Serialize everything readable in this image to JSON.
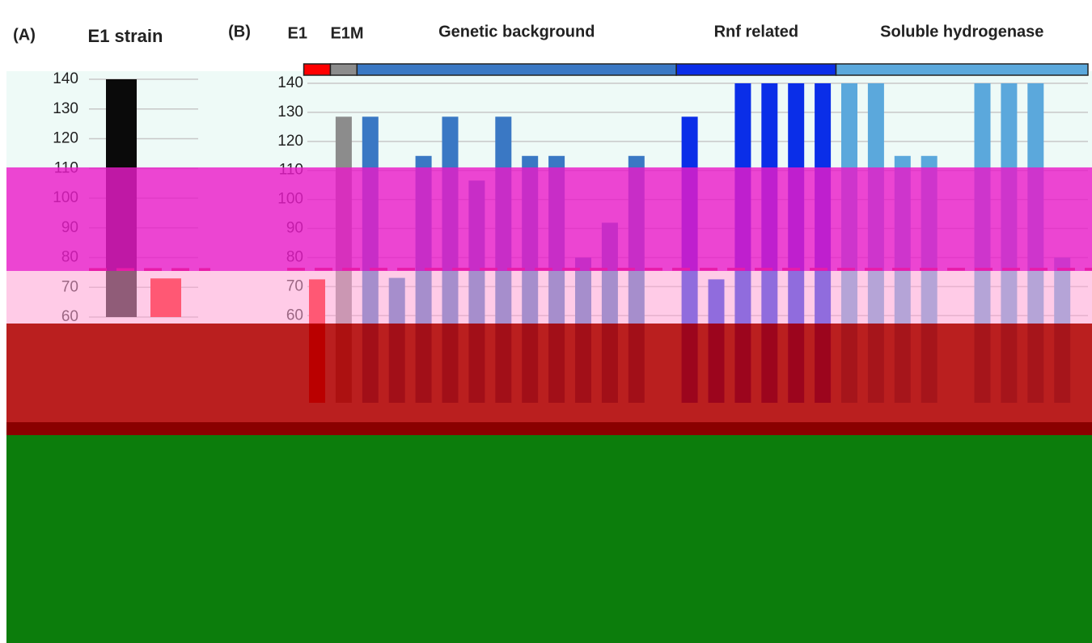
{
  "chart_data": [
    {
      "type": "bar",
      "panel": "(A)",
      "title": "E1 strain",
      "categories": [
        null,
        null
      ],
      "values": [
        140,
        73
      ],
      "colors": [
        "#0a0a0a",
        "#ff0000"
      ],
      "ylim": [
        60,
        140
      ],
      "yticks": [
        60,
        70,
        80,
        90,
        100,
        110,
        120,
        130,
        140
      ],
      "grid": true,
      "reference_line": 76,
      "reference_color": "#e0201c"
    },
    {
      "type": "bar",
      "panel": "(B)",
      "categories": [
        null,
        null,
        null,
        null,
        null,
        null,
        null,
        null,
        null,
        null,
        null,
        null,
        null,
        null,
        null,
        null,
        null,
        null,
        null,
        null,
        null,
        null,
        null,
        null,
        null,
        null,
        null,
        null,
        null
      ],
      "series": [
        {
          "name": "E1",
          "color": "#ff0000",
          "values": [
            72.5,
            null,
            null,
            null,
            null,
            null,
            null,
            null,
            null,
            null,
            null,
            null,
            null,
            null,
            null,
            null,
            null,
            null,
            null,
            null,
            null,
            null,
            null,
            null,
            null,
            null,
            null,
            null,
            null
          ]
        },
        {
          "name": "E1M",
          "color": "#8c8c8c",
          "values": [
            null,
            128.5,
            null,
            null,
            null,
            null,
            null,
            null,
            null,
            null,
            null,
            null,
            null,
            null,
            null,
            null,
            null,
            null,
            null,
            null,
            null,
            null,
            null,
            null,
            null,
            null,
            null,
            null,
            null
          ]
        },
        {
          "name": "Genetic background",
          "color": "#3a78c4",
          "values": [
            null,
            null,
            128.5,
            73,
            115,
            128.5,
            106.5,
            128.5,
            115,
            115,
            80,
            92,
            115,
            null,
            null,
            null,
            null,
            null,
            null,
            null,
            null,
            null,
            null,
            null,
            null,
            null,
            null,
            null,
            null
          ]
        },
        {
          "name": "Rnf related",
          "color": "#0a2ee8",
          "values": [
            null,
            null,
            null,
            null,
            null,
            null,
            null,
            null,
            null,
            null,
            null,
            null,
            null,
            null,
            128.5,
            72.5,
            140,
            140,
            140,
            140,
            null,
            null,
            null,
            null,
            null,
            null,
            null,
            null,
            null
          ]
        },
        {
          "name": "Soluble hydrogenase",
          "color": "#5ba8dc",
          "values": [
            null,
            null,
            null,
            null,
            null,
            null,
            null,
            null,
            null,
            null,
            null,
            null,
            null,
            null,
            null,
            null,
            null,
            null,
            null,
            null,
            140,
            140,
            115,
            115,
            null,
            140,
            140,
            140,
            80
          ]
        }
      ],
      "ylim": [
        30,
        140
      ],
      "yticks": [
        60,
        70,
        80,
        90,
        100,
        110,
        120,
        130,
        140
      ],
      "grid": true,
      "reference_line": 76,
      "reference_color": "#e0201c"
    }
  ]
}
